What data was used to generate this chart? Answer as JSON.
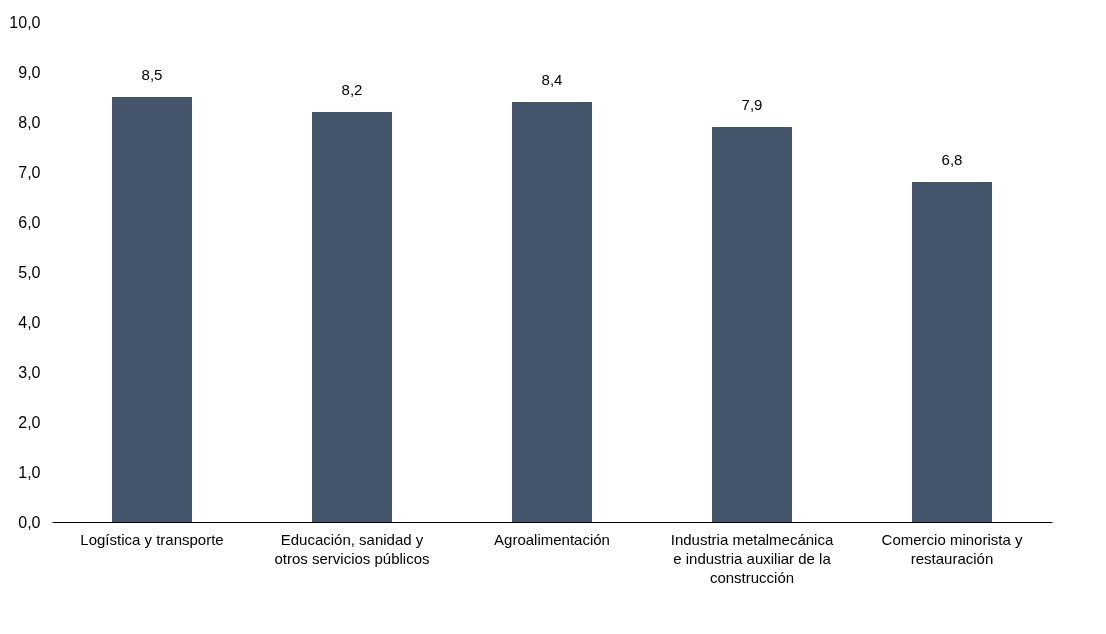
{
  "chart_data": {
    "type": "bar",
    "categories": [
      "Logística y transporte",
      "Educación, sanidad y otros servicios públicos",
      "Agroalimentación",
      "Industria metalmecánica e industria auxiliar de la construcción",
      "Comercio minorista y restauración"
    ],
    "values": [
      8.5,
      8.2,
      8.4,
      7.9,
      6.8
    ],
    "value_labels": [
      "8,5",
      "8,2",
      "8,4",
      "7,9",
      "6,8"
    ],
    "color": "#44546a",
    "ylim": [
      0,
      10
    ],
    "yticks": [
      {
        "value": 0,
        "label": "0,0"
      },
      {
        "value": 1,
        "label": "1,0"
      },
      {
        "value": 2,
        "label": "2,0"
      },
      {
        "value": 3,
        "label": "3,0"
      },
      {
        "value": 4,
        "label": "4,0"
      },
      {
        "value": 5,
        "label": "5,0"
      },
      {
        "value": 6,
        "label": "6,0"
      },
      {
        "value": 7,
        "label": "7,0"
      },
      {
        "value": 8,
        "label": "8,0"
      },
      {
        "value": 9,
        "label": "9,0"
      },
      {
        "value": 10,
        "label": "10,0"
      }
    ],
    "grid": false
  }
}
